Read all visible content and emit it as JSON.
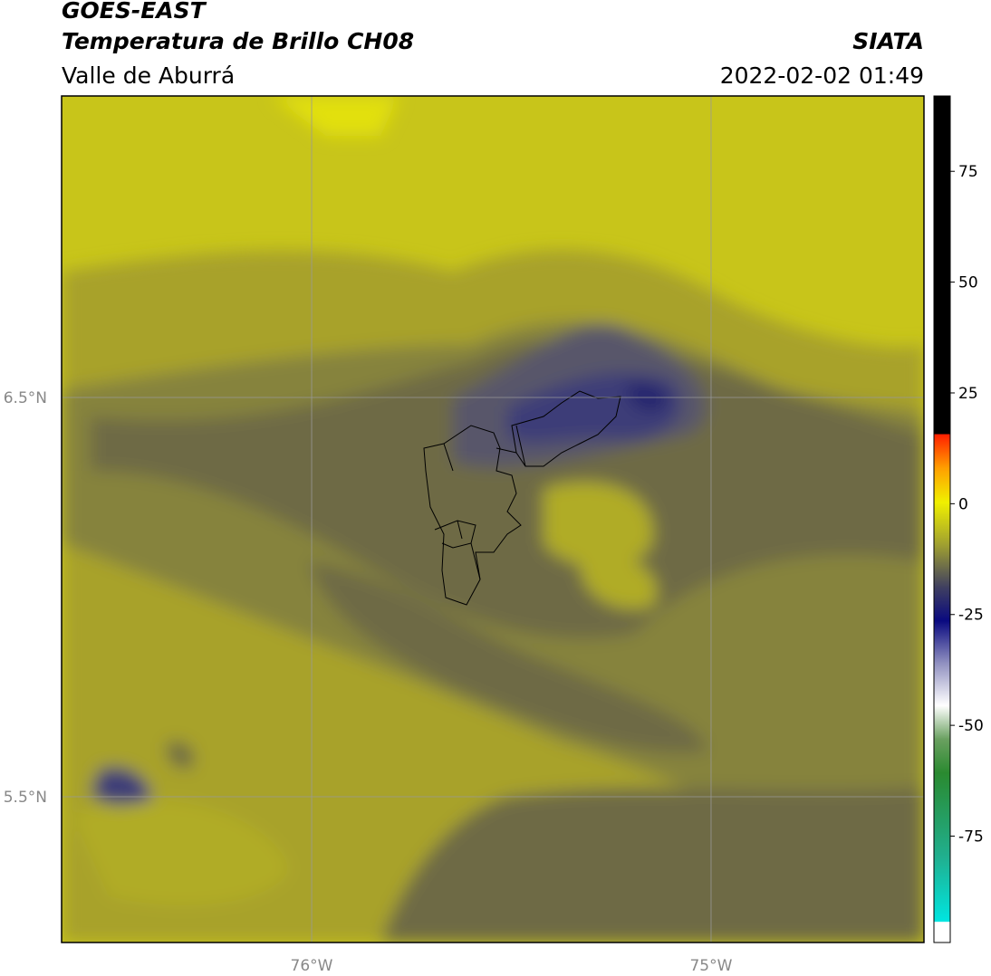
{
  "header": {
    "title": "GOES-EAST",
    "subtitle": "Temperatura de Brillo CH08",
    "region": "Valle de Aburrá",
    "brand": "SIATA",
    "datetime": "2022-02-02 01:49"
  },
  "map": {
    "xlim": [
      -76.626,
      -74.467
    ],
    "ylim": [
      5.135,
      7.255
    ],
    "xticks": [
      {
        "value": -76,
        "label": "76°W"
      },
      {
        "value": -75,
        "label": "75°W"
      }
    ],
    "yticks": [
      {
        "value": 6.5,
        "label": "6.5°N"
      },
      {
        "value": 5.5,
        "label": "5.5°N"
      }
    ],
    "grid": true
  },
  "colorbar": {
    "lim": [
      -99,
      92
    ],
    "ticks": [
      75,
      50,
      25,
      0,
      -25,
      -50,
      -75
    ]
  }
}
